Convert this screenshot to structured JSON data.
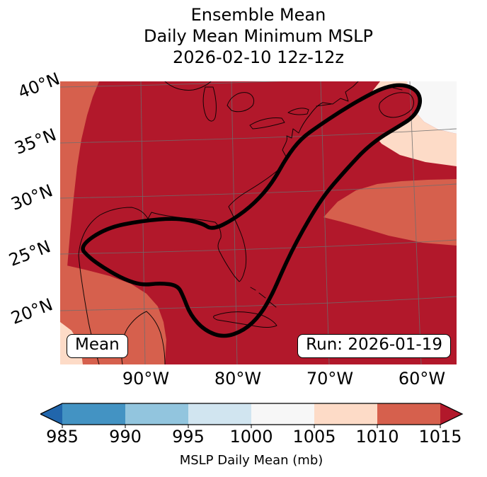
{
  "title": {
    "line1": "Ensemble Mean",
    "line2": "Daily Mean Minimum MSLP",
    "line3": "2026-02-10 12z-12z"
  },
  "map": {
    "annotation_mean": "Mean",
    "annotation_run": "Run: 2026-01-19",
    "lat_ticks": [
      "40°N",
      "35°N",
      "30°N",
      "25°N",
      "20°N"
    ],
    "lon_ticks": [
      "90°W",
      "80°W",
      "70°W",
      "60°W"
    ]
  },
  "colorbar": {
    "label": "MSLP Daily Mean (mb)",
    "ticks": [
      "985",
      "990",
      "995",
      "1000",
      "1005",
      "1010",
      "1015"
    ],
    "interval_colors": [
      "#4393c3",
      "#92c5de",
      "#d1e5f0",
      "#f7f7f7",
      "#fddbc7",
      "#d6604d"
    ],
    "under_arrow_color": "#2166ac",
    "over_arrow_color": "#b2182b",
    "outline_color": "#000000"
  },
  "chart_data": {
    "type": "heatmap",
    "title": "Ensemble Mean Daily Mean Minimum MSLP 2026-02-10 12z-12z",
    "colorbar_label": "MSLP Daily Mean (mb)",
    "units": "mb",
    "levels": [
      985,
      990,
      995,
      1000,
      1005,
      1010,
      1015
    ],
    "colormap": "RdBu_r",
    "extend": "both",
    "x_tick_labels": [
      "90°W",
      "80°W",
      "70°W",
      "60°W"
    ],
    "y_tick_labels": [
      "40°N",
      "35°N",
      "30°N",
      "25°N",
      "20°N"
    ],
    "approx_extent": {
      "lon_min_deg_w": 99,
      "lon_max_deg_w": 56,
      "lat_min_deg_n": 15,
      "lat_max_deg_n": 41
    },
    "regions": [
      {
        "value_range": "> 1015",
        "color": "#b2182b",
        "coverage": "dominant: central/eastern North America, Gulf of Mexico, Caribbean and most of the western Atlantic"
      },
      {
        "value_range": "1010-1015",
        "color": "#d6604d",
        "coverage": "western edge of domain, southwest corner near Mexico/Yucatan, and an Atlantic band east of ~70°W near 27-33°N"
      },
      {
        "value_range": "1005-1010",
        "color": "#fddbc7",
        "coverage": "northeast Atlantic band south/east of Nova Scotia"
      },
      {
        "value_range": "1000-1005",
        "color": "#f7f7f7",
        "coverage": "far northeast corner of the domain"
      }
    ],
    "overlay_contour": "single thick black closed contour enclosing the Gulf of Mexico coast, Florida/Cuba lobe, and a corridor up the U.S. East Coast to Nova Scotia",
    "annotations": [
      "Mean",
      "Run: 2026-01-19"
    ],
    "grid": true,
    "legend_position": "horizontal colorbar below map"
  }
}
